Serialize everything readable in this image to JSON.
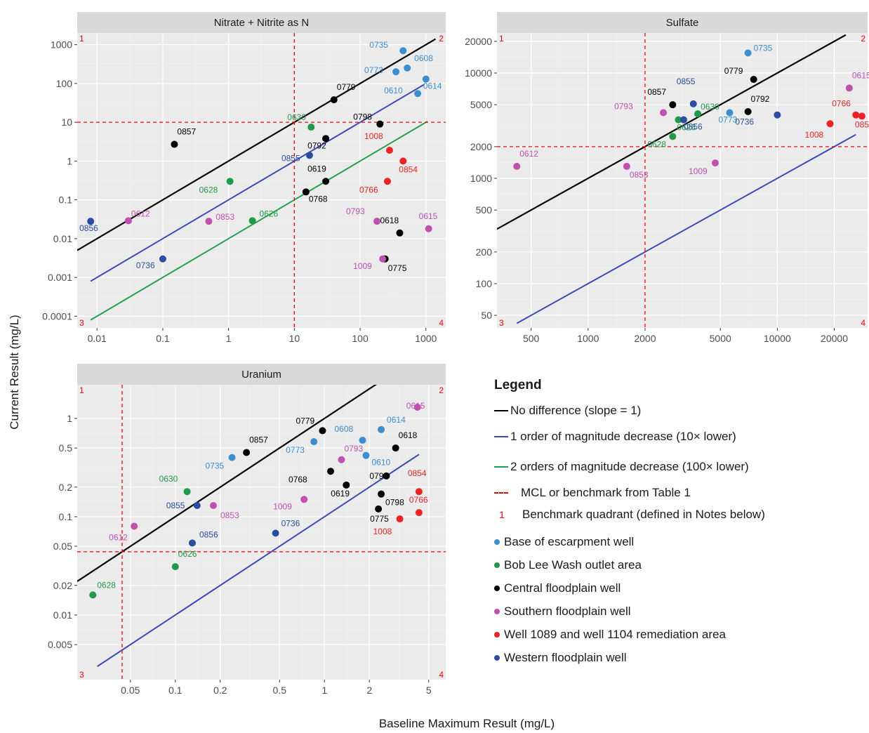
{
  "figure": {
    "x_title": "Baseline Maximum Result (mg/L)",
    "y_title": "Current Result (mg/L)"
  },
  "colors": {
    "panel_bg": "#ebebeb",
    "grid_major": "#ffffff",
    "strip_bg": "#d9d9d9",
    "Base of escarpment well": "#3a8fd1",
    "Bob Lee Wash outlet area": "#1e9b48",
    "Central floodplain well": "#000000",
    "Southern floodplain well": "#c04fb0",
    "Well 1089 and well 1104 remediation area": "#ee2222",
    "Western floodplain well": "#2a4da3",
    "no_difference": "#000000",
    "one_order": "#3b4bb8",
    "two_order": "#22a24a",
    "mcl": "#ff0000"
  },
  "legend": {
    "title": "Legend",
    "lines": [
      {
        "label": "No difference (slope = 1)",
        "color": "#000000"
      },
      {
        "label": "1 order of magnitude decrease (10× lower)",
        "color": "#3b4bb8"
      },
      {
        "label": "2 orders of magnitude decrease (100× lower)",
        "color": "#22a24a"
      }
    ],
    "mcl_label": "MCL or benchmark from Table 1",
    "quadrant_symbol": "1",
    "quadrant_label": "Benchmark quadrant (defined in Notes below)",
    "groups": [
      "Base of escarpment well",
      "Bob Lee Wash outlet area",
      "Central floodplain well",
      "Southern floodplain well",
      "Well 1089 and well 1104 remediation area",
      "Western floodplain well"
    ]
  },
  "chart_data": [
    {
      "type": "scatter",
      "title": "Nitrate + Nitrite as N",
      "xscale": "log",
      "yscale": "log",
      "xlim": [
        0.005,
        2000
      ],
      "ylim": [
        5e-05,
        2000
      ],
      "xticks": [
        0.01,
        0.1,
        1,
        10,
        100,
        1000
      ],
      "xtick_labels": [
        "0.01",
        "0.1",
        "1",
        "10",
        "100",
        "1000"
      ],
      "yticks": [
        0.0001,
        0.001,
        0.01,
        0.1,
        1,
        10,
        100,
        1000
      ],
      "ytick_labels": [
        "0.0001",
        "0.001",
        "0.01",
        "0.1",
        "1",
        "10",
        "100",
        "1000"
      ],
      "benchmark": 10,
      "reference_lines": {
        "no_difference": [
          0.005,
          1400
        ],
        "one_order": [
          0.008,
          950
        ],
        "two_order": [
          0.008,
          1050
        ]
      },
      "quadrants": [
        "1",
        "2",
        "3",
        "4"
      ],
      "points": [
        {
          "label": "0735",
          "x": 450,
          "y": 700,
          "group": "Base of escarpment well"
        },
        {
          "label": "0608",
          "x": 520,
          "y": 250,
          "group": "Base of escarpment well"
        },
        {
          "label": "0773",
          "x": 350,
          "y": 200,
          "group": "Base of escarpment well"
        },
        {
          "label": "0614",
          "x": 1000,
          "y": 130,
          "group": "Base of escarpment well"
        },
        {
          "label": "0610",
          "x": 750,
          "y": 55,
          "group": "Base of escarpment well"
        },
        {
          "label": "0779",
          "x": 40,
          "y": 38,
          "group": "Central floodplain well"
        },
        {
          "label": "0798",
          "x": 200,
          "y": 9,
          "group": "Central floodplain well"
        },
        {
          "label": "0792",
          "x": 30,
          "y": 3.8,
          "group": "Central floodplain well"
        },
        {
          "label": "0857",
          "x": 0.15,
          "y": 2.7,
          "group": "Central floodplain well"
        },
        {
          "label": "0619",
          "x": 30,
          "y": 0.3,
          "group": "Central floodplain well"
        },
        {
          "label": "0768",
          "x": 15,
          "y": 0.16,
          "group": "Central floodplain well"
        },
        {
          "label": "0618",
          "x": 400,
          "y": 0.014,
          "group": "Central floodplain well"
        },
        {
          "label": "0775",
          "x": 240,
          "y": 0.003,
          "group": "Central floodplain well"
        },
        {
          "label": "0630",
          "x": 18,
          "y": 7.5,
          "group": "Bob Lee Wash outlet area"
        },
        {
          "label": "0628",
          "x": 1.05,
          "y": 0.3,
          "group": "Bob Lee Wash outlet area"
        },
        {
          "label": "0626",
          "x": 2.3,
          "y": 0.029,
          "group": "Bob Lee Wash outlet area"
        },
        {
          "label": "1008",
          "x": 280,
          "y": 1.9,
          "group": "Well 1089 and well 1104 remediation area"
        },
        {
          "label": "0854",
          "x": 450,
          "y": 1.0,
          "group": "Well 1089 and well 1104 remediation area"
        },
        {
          "label": "0766",
          "x": 260,
          "y": 0.3,
          "group": "Well 1089 and well 1104 remediation area"
        },
        {
          "label": "0612",
          "x": 0.03,
          "y": 0.029,
          "group": "Southern floodplain well"
        },
        {
          "label": "0853",
          "x": 0.5,
          "y": 0.028,
          "group": "Southern floodplain well"
        },
        {
          "label": "0793",
          "x": 180,
          "y": 0.028,
          "group": "Southern floodplain well"
        },
        {
          "label": "0615",
          "x": 1100,
          "y": 0.018,
          "group": "Southern floodplain well"
        },
        {
          "label": "1009",
          "x": 220,
          "y": 0.003,
          "group": "Southern floodplain well"
        },
        {
          "label": "0855",
          "x": 17,
          "y": 1.4,
          "group": "Western floodplain well"
        },
        {
          "label": "0856",
          "x": 0.008,
          "y": 0.028,
          "group": "Western floodplain well"
        },
        {
          "label": "0736",
          "x": 0.1,
          "y": 0.003,
          "group": "Western floodplain well"
        }
      ]
    },
    {
      "type": "scatter",
      "title": "Sulfate",
      "xscale": "log",
      "yscale": "log",
      "xlim": [
        330,
        30000
      ],
      "ylim": [
        38,
        24000
      ],
      "xticks": [
        500,
        1000,
        2000,
        5000,
        10000,
        20000
      ],
      "xtick_labels": [
        "500",
        "1000",
        "2000",
        "5000",
        "10000",
        "20000"
      ],
      "yticks": [
        50,
        100,
        200,
        500,
        1000,
        2000,
        5000,
        10000,
        20000
      ],
      "ytick_labels": [
        "50",
        "100",
        "200",
        "500",
        "1000",
        "2000",
        "5000",
        "10000",
        "20000"
      ],
      "benchmark": 2000,
      "reference_lines": {
        "no_difference": [
          330,
          23000
        ],
        "one_order": [
          420,
          26000
        ]
      },
      "quadrants": [
        "1",
        "2",
        "3",
        "4"
      ],
      "points": [
        {
          "label": "0735",
          "x": 7000,
          "y": 15500,
          "group": "Base of escarpment well"
        },
        {
          "label": "0773",
          "x": 5600,
          "y": 4200,
          "group": "Base of escarpment well"
        },
        {
          "label": "0779",
          "x": 7500,
          "y": 8700,
          "group": "Central floodplain well"
        },
        {
          "label": "0857",
          "x": 2800,
          "y": 5000,
          "group": "Central floodplain well"
        },
        {
          "label": "0792",
          "x": 7000,
          "y": 4300,
          "group": "Central floodplain well"
        },
        {
          "label": "0630",
          "x": 3800,
          "y": 4100,
          "group": "Bob Lee Wash outlet area"
        },
        {
          "label": "0626",
          "x": 3000,
          "y": 3600,
          "group": "Bob Lee Wash outlet area"
        },
        {
          "label": "0628",
          "x": 2800,
          "y": 2500,
          "group": "Bob Lee Wash outlet area"
        },
        {
          "label": "0855",
          "x": 3600,
          "y": 5100,
          "group": "Western floodplain well"
        },
        {
          "label": "0856",
          "x": 3200,
          "y": 3600,
          "group": "Western floodplain well"
        },
        {
          "label": "0736",
          "x": 10000,
          "y": 4000,
          "group": "Western floodplain well"
        },
        {
          "label": "0793",
          "x": 2500,
          "y": 4200,
          "group": "Southern floodplain well"
        },
        {
          "label": "0615",
          "x": 24000,
          "y": 7200,
          "group": "Southern floodplain well"
        },
        {
          "label": "0612",
          "x": 420,
          "y": 1300,
          "group": "Southern floodplain well"
        },
        {
          "label": "0853",
          "x": 1600,
          "y": 1300,
          "group": "Southern floodplain well"
        },
        {
          "label": "1009",
          "x": 4700,
          "y": 1400,
          "group": "Southern floodplain well"
        },
        {
          "label": "0766",
          "x": 26000,
          "y": 4000,
          "group": "Well 1089 and well 1104 remediation area"
        },
        {
          "label": "0854",
          "x": 28000,
          "y": 3900,
          "group": "Well 1089 and well 1104 remediation area"
        },
        {
          "label": "1008",
          "x": 19000,
          "y": 3300,
          "group": "Well 1089 and well 1104 remediation area"
        }
      ]
    },
    {
      "type": "scatter",
      "title": "Uranium",
      "xscale": "log",
      "yscale": "log",
      "xlim": [
        0.022,
        6.5
      ],
      "ylim": [
        0.0022,
        2.2
      ],
      "xticks": [
        0.05,
        0.1,
        0.2,
        0.5,
        1,
        2,
        5
      ],
      "xtick_labels": [
        "0.05",
        "0.1",
        "0.2",
        "0.5",
        "1",
        "2",
        "5"
      ],
      "yticks": [
        0.005,
        0.01,
        0.02,
        0.05,
        0.1,
        0.2,
        0.5,
        1
      ],
      "ytick_labels": [
        "0.005",
        "0.01",
        "0.02",
        "0.05",
        "0.1",
        "0.2",
        "0.5",
        "1"
      ],
      "benchmark": 0.044,
      "reference_lines": {
        "no_difference": [
          0.022,
          2.3
        ],
        "one_order": [
          0.03,
          4.3
        ]
      },
      "quadrants": [
        "1",
        "2",
        "3",
        "4"
      ],
      "points": [
        {
          "label": "0735",
          "x": 0.24,
          "y": 0.4,
          "group": "Base of escarpment well"
        },
        {
          "label": "0773",
          "x": 0.85,
          "y": 0.58,
          "group": "Base of escarpment well"
        },
        {
          "label": "0608",
          "x": 1.8,
          "y": 0.6,
          "group": "Base of escarpment well"
        },
        {
          "label": "0614",
          "x": 2.4,
          "y": 0.77,
          "group": "Base of escarpment well"
        },
        {
          "label": "0610",
          "x": 1.9,
          "y": 0.42,
          "group": "Base of escarpment well"
        },
        {
          "label": "0779",
          "x": 0.97,
          "y": 0.75,
          "group": "Central floodplain well"
        },
        {
          "label": "0857",
          "x": 0.3,
          "y": 0.45,
          "group": "Central floodplain well"
        },
        {
          "label": "0618",
          "x": 3.0,
          "y": 0.5,
          "group": "Central floodplain well"
        },
        {
          "label": "0768",
          "x": 1.1,
          "y": 0.29,
          "group": "Central floodplain well"
        },
        {
          "label": "0792",
          "x": 2.6,
          "y": 0.26,
          "group": "Central floodplain well"
        },
        {
          "label": "0798",
          "x": 2.4,
          "y": 0.17,
          "group": "Central floodplain well"
        },
        {
          "label": "0619",
          "x": 1.4,
          "y": 0.21,
          "group": "Central floodplain well"
        },
        {
          "label": "0775",
          "x": 2.3,
          "y": 0.12,
          "group": "Central floodplain well"
        },
        {
          "label": "0630",
          "x": 0.12,
          "y": 0.18,
          "group": "Bob Lee Wash outlet area"
        },
        {
          "label": "0626",
          "x": 0.1,
          "y": 0.031,
          "group": "Bob Lee Wash outlet area"
        },
        {
          "label": "0628",
          "x": 0.028,
          "y": 0.016,
          "group": "Bob Lee Wash outlet area"
        },
        {
          "label": "0615",
          "x": 4.2,
          "y": 1.3,
          "group": "Southern floodplain well"
        },
        {
          "label": "0793",
          "x": 1.3,
          "y": 0.38,
          "group": "Southern floodplain well"
        },
        {
          "label": "1009",
          "x": 0.73,
          "y": 0.15,
          "group": "Southern floodplain well"
        },
        {
          "label": "0853",
          "x": 0.18,
          "y": 0.13,
          "group": "Southern floodplain well"
        },
        {
          "label": "0612",
          "x": 0.053,
          "y": 0.08,
          "group": "Southern floodplain well"
        },
        {
          "label": "0855",
          "x": 0.14,
          "y": 0.13,
          "group": "Western floodplain well"
        },
        {
          "label": "0856",
          "x": 0.13,
          "y": 0.054,
          "group": "Western floodplain well"
        },
        {
          "label": "0736",
          "x": 0.47,
          "y": 0.068,
          "group": "Western floodplain well"
        },
        {
          "label": "0854",
          "x": 4.3,
          "y": 0.18,
          "group": "Well 1089 and well 1104 remediation area"
        },
        {
          "label": "0766",
          "x": 4.3,
          "y": 0.11,
          "group": "Well 1089 and well 1104 remediation area"
        },
        {
          "label": "1008",
          "x": 3.2,
          "y": 0.095,
          "group": "Well 1089 and well 1104 remediation area"
        }
      ]
    }
  ]
}
